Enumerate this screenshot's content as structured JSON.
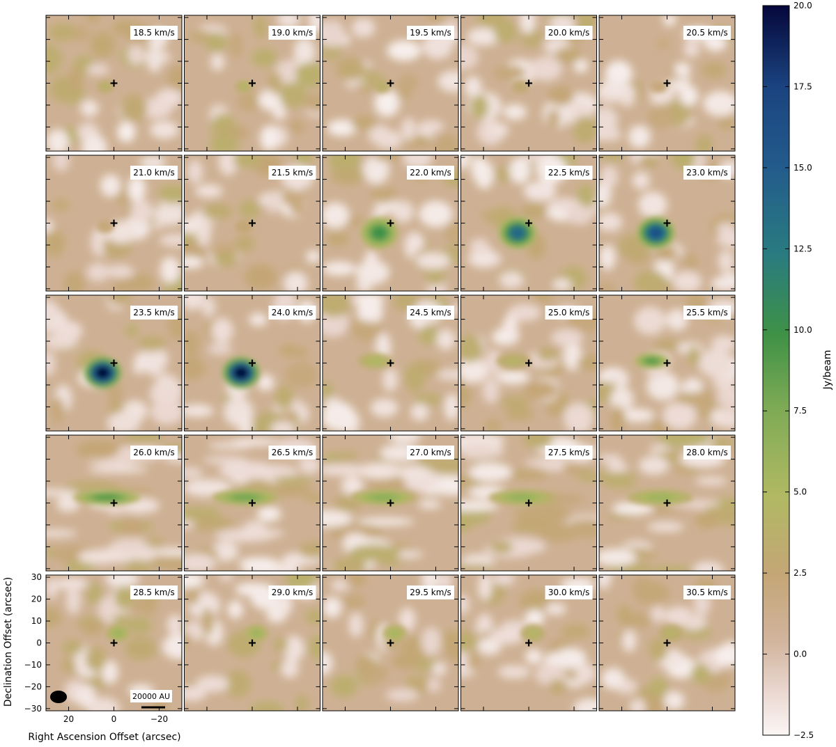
{
  "chart_data": {
    "type": "heatmap",
    "layout": {
      "rows": 5,
      "cols": 5
    },
    "panels": [
      {
        "velocity": 18.5,
        "label": "18.5 km/s",
        "peak": 4
      },
      {
        "velocity": 19.0,
        "label": "19.0 km/s",
        "peak": 4.5
      },
      {
        "velocity": 19.5,
        "label": "19.5 km/s",
        "peak": 4
      },
      {
        "velocity": 20.0,
        "label": "20.0 km/s",
        "peak": 3
      },
      {
        "velocity": 20.5,
        "label": "20.5 km/s",
        "peak": 2
      },
      {
        "velocity": 21.0,
        "label": "21.0 km/s",
        "peak": 2
      },
      {
        "velocity": 21.5,
        "label": "21.5 km/s",
        "peak": 2.5
      },
      {
        "velocity": 22.0,
        "label": "22.0 km/s",
        "peak": 10
      },
      {
        "velocity": 22.5,
        "label": "22.5 km/s",
        "peak": 14
      },
      {
        "velocity": 23.0,
        "label": "23.0 km/s",
        "peak": 16
      },
      {
        "velocity": 23.5,
        "label": "23.5 km/s",
        "peak": 20
      },
      {
        "velocity": 24.0,
        "label": "24.0 km/s",
        "peak": 20
      },
      {
        "velocity": 24.5,
        "label": "24.5 km/s",
        "peak": 5
      },
      {
        "velocity": 25.0,
        "label": "25.0 km/s",
        "peak": 4
      },
      {
        "velocity": 25.5,
        "label": "25.5 km/s",
        "peak": 9
      },
      {
        "velocity": 26.0,
        "label": "26.0 km/s",
        "peak": 9
      },
      {
        "velocity": 26.5,
        "label": "26.5 km/s",
        "peak": 8
      },
      {
        "velocity": 27.0,
        "label": "27.0 km/s",
        "peak": 7
      },
      {
        "velocity": 27.5,
        "label": "27.5 km/s",
        "peak": 6.5
      },
      {
        "velocity": 28.0,
        "label": "28.0 km/s",
        "peak": 6
      },
      {
        "velocity": 28.5,
        "label": "28.5 km/s",
        "peak": 6
      },
      {
        "velocity": 29.0,
        "label": "29.0 km/s",
        "peak": 6
      },
      {
        "velocity": 29.5,
        "label": "29.5 km/s",
        "peak": 5.5
      },
      {
        "velocity": 30.0,
        "label": "30.0 km/s",
        "peak": 4.5
      },
      {
        "velocity": 30.5,
        "label": "30.5 km/s",
        "peak": 4
      }
    ],
    "xlabel": "Right Ascension Offset (arcsec)",
    "ylabel": "Declination Offset (arcsec)",
    "xlim": [
      30,
      -30
    ],
    "ylim": [
      -31,
      31
    ],
    "xticks": [
      20,
      0,
      -20
    ],
    "xtick_labels": [
      "20",
      "0",
      "−20"
    ],
    "yticks": [
      30,
      20,
      10,
      0,
      -10,
      -20,
      -30
    ],
    "ytick_labels": [
      "30",
      "20",
      "10",
      "0",
      "−10",
      "−20",
      "−30"
    ],
    "colorbar": {
      "label": "Jy/beam",
      "min": -2.5,
      "max": 20.0,
      "ticks": [
        20.0,
        17.5,
        15.0,
        12.5,
        10.0,
        7.5,
        5.0,
        2.5,
        0.0,
        -2.5
      ],
      "tick_labels": [
        "20.0",
        "17.5",
        "15.0",
        "12.5",
        "10.0",
        "7.5",
        "5.0",
        "2.5",
        "0.0",
        "−2.5"
      ],
      "colors": [
        "#fbf6f5",
        "#d1b49c",
        "#c4a676",
        "#b0b962",
        "#7daa55",
        "#3e9146",
        "#297b80",
        "#1a437f",
        "#05073b"
      ]
    },
    "scale_bar_label": "20000 AU",
    "marker": "plus at (0, 0)"
  }
}
